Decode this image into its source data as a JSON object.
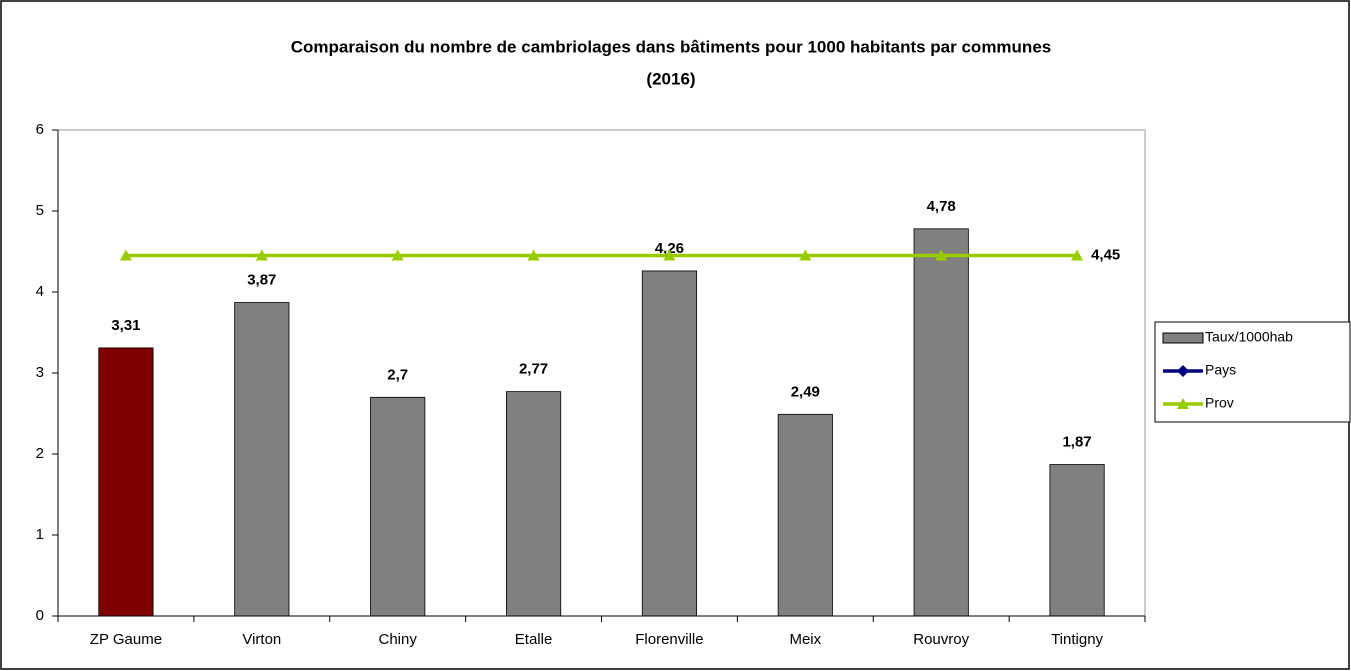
{
  "chart_data": {
    "type": "bar",
    "title": [
      "Comparaison du nombre de cambriolages dans bâtiments pour 1000 habitants par communes",
      "(2016)"
    ],
    "categories": [
      "ZP Gaume",
      "Virton",
      "Chiny",
      "Etalle",
      "Florenville",
      "Meix",
      "Rouvroy",
      "Tintigny"
    ],
    "series": [
      {
        "name": "Taux/1000hab",
        "type": "bar",
        "color": "#808080",
        "colors": [
          "#800000",
          "#808080",
          "#808080",
          "#808080",
          "#808080",
          "#808080",
          "#808080",
          "#808080"
        ],
        "values": [
          3.31,
          3.87,
          2.7,
          2.77,
          4.26,
          2.49,
          4.78,
          1.87
        ],
        "value_labels": [
          "3,31",
          "3,87",
          "2,7",
          "2,77",
          "4,26",
          "2,49",
          "4,78",
          "1,87"
        ]
      },
      {
        "name": "Pays",
        "type": "line",
        "color": "#000080",
        "marker": "diamond",
        "values": [
          null,
          null,
          null,
          null,
          null,
          null,
          null,
          null
        ]
      },
      {
        "name": "Prov",
        "type": "line",
        "color": "#99cc00",
        "marker": "triangle",
        "values": [
          4.45,
          4.45,
          4.45,
          4.45,
          4.45,
          4.45,
          4.45,
          4.45
        ],
        "value_labels": [
          null,
          null,
          null,
          null,
          null,
          null,
          null,
          "4,45"
        ]
      }
    ],
    "ylim": [
      0,
      6
    ],
    "yticks": [
      0,
      1,
      2,
      3,
      4,
      5,
      6
    ],
    "grid": false,
    "legend": "right"
  }
}
